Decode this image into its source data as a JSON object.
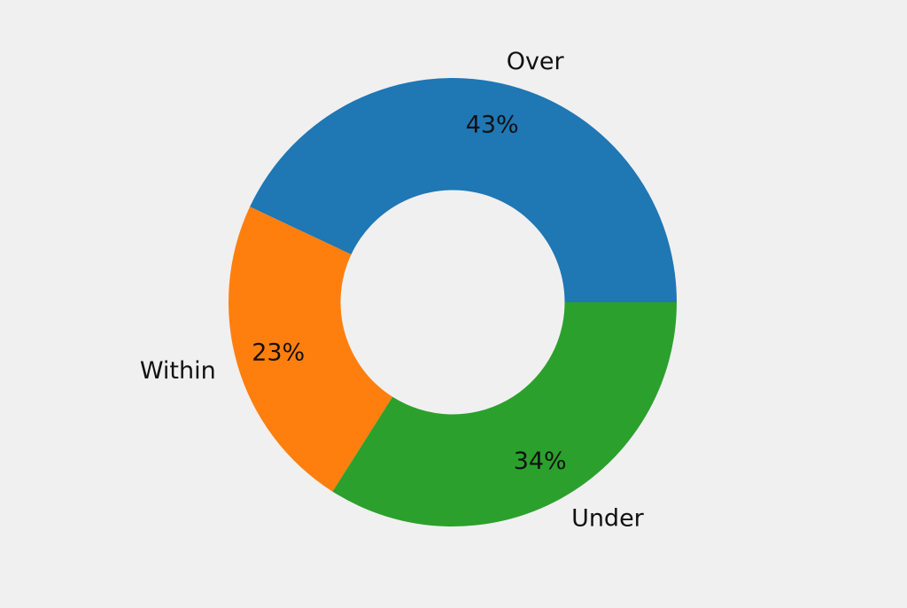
{
  "page": {
    "background_color": "#f0f0f1",
    "text_color": "#111111"
  },
  "chart_data": {
    "type": "pie",
    "subtype": "donut",
    "title": "",
    "categories": [
      "Over",
      "Within",
      "Under"
    ],
    "values": [
      43,
      23,
      34
    ],
    "pct_labels": [
      "43%",
      "23%",
      "34%"
    ],
    "colors": [
      "#1f77b4",
      "#ff7f0e",
      "#2ca02c"
    ],
    "start_angle_deg": 0,
    "direction": "counterclockwise",
    "donut_hole_ratio": 0.5,
    "hole_color": "#f0f0f1",
    "label_color": "#111111",
    "legend_position": "none",
    "grid": false
  }
}
